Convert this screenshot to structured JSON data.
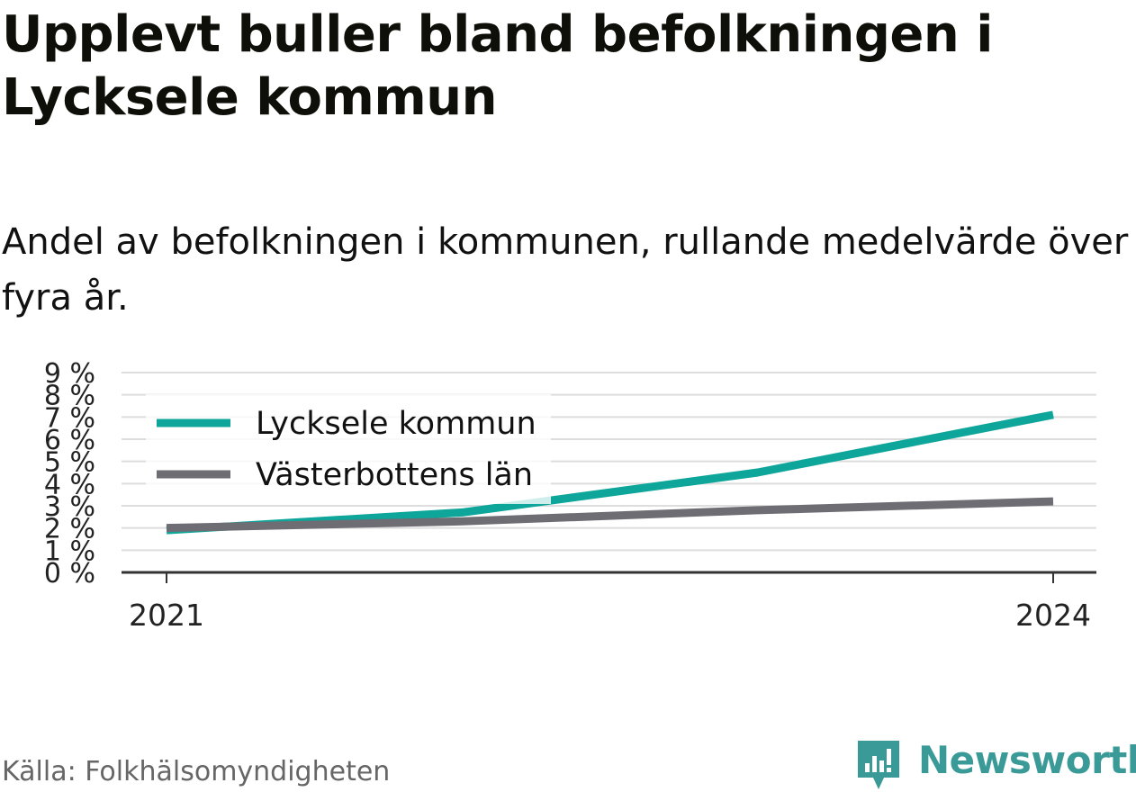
{
  "title": "Upplevt buller bland befolkningen i Lycksele kommun",
  "subtitle": "Andel av befolkningen i kommunen, rullande medelvärde över fyra år.",
  "source": "Källa: Folkhälsomyndigheten",
  "brand": {
    "name": "Newsworthy",
    "icon": "newsworthy-logo-icon",
    "color": "#3a9a97"
  },
  "colors": {
    "lycksele": "#0ea59a",
    "vasterbotten": "#6e6d73",
    "grid": "#dddddd",
    "axis": "#333333"
  },
  "chart_data": {
    "type": "line",
    "x": [
      2021,
      2022,
      2023,
      2024
    ],
    "x_ticks": [
      "2021",
      "2024"
    ],
    "y_ticks": [
      "0 %",
      "1 %",
      "2 %",
      "3 %",
      "4 %",
      "5 %",
      "6 %",
      "7 %",
      "8 %",
      "9 %"
    ],
    "ylim": [
      0,
      9
    ],
    "grid": true,
    "legend_position": "top-left",
    "series": [
      {
        "name": "Lycksele kommun",
        "values": [
          1.9,
          2.7,
          4.5,
          7.1
        ]
      },
      {
        "name": "Västerbottens län",
        "values": [
          2.0,
          2.3,
          2.8,
          3.2
        ]
      }
    ]
  }
}
